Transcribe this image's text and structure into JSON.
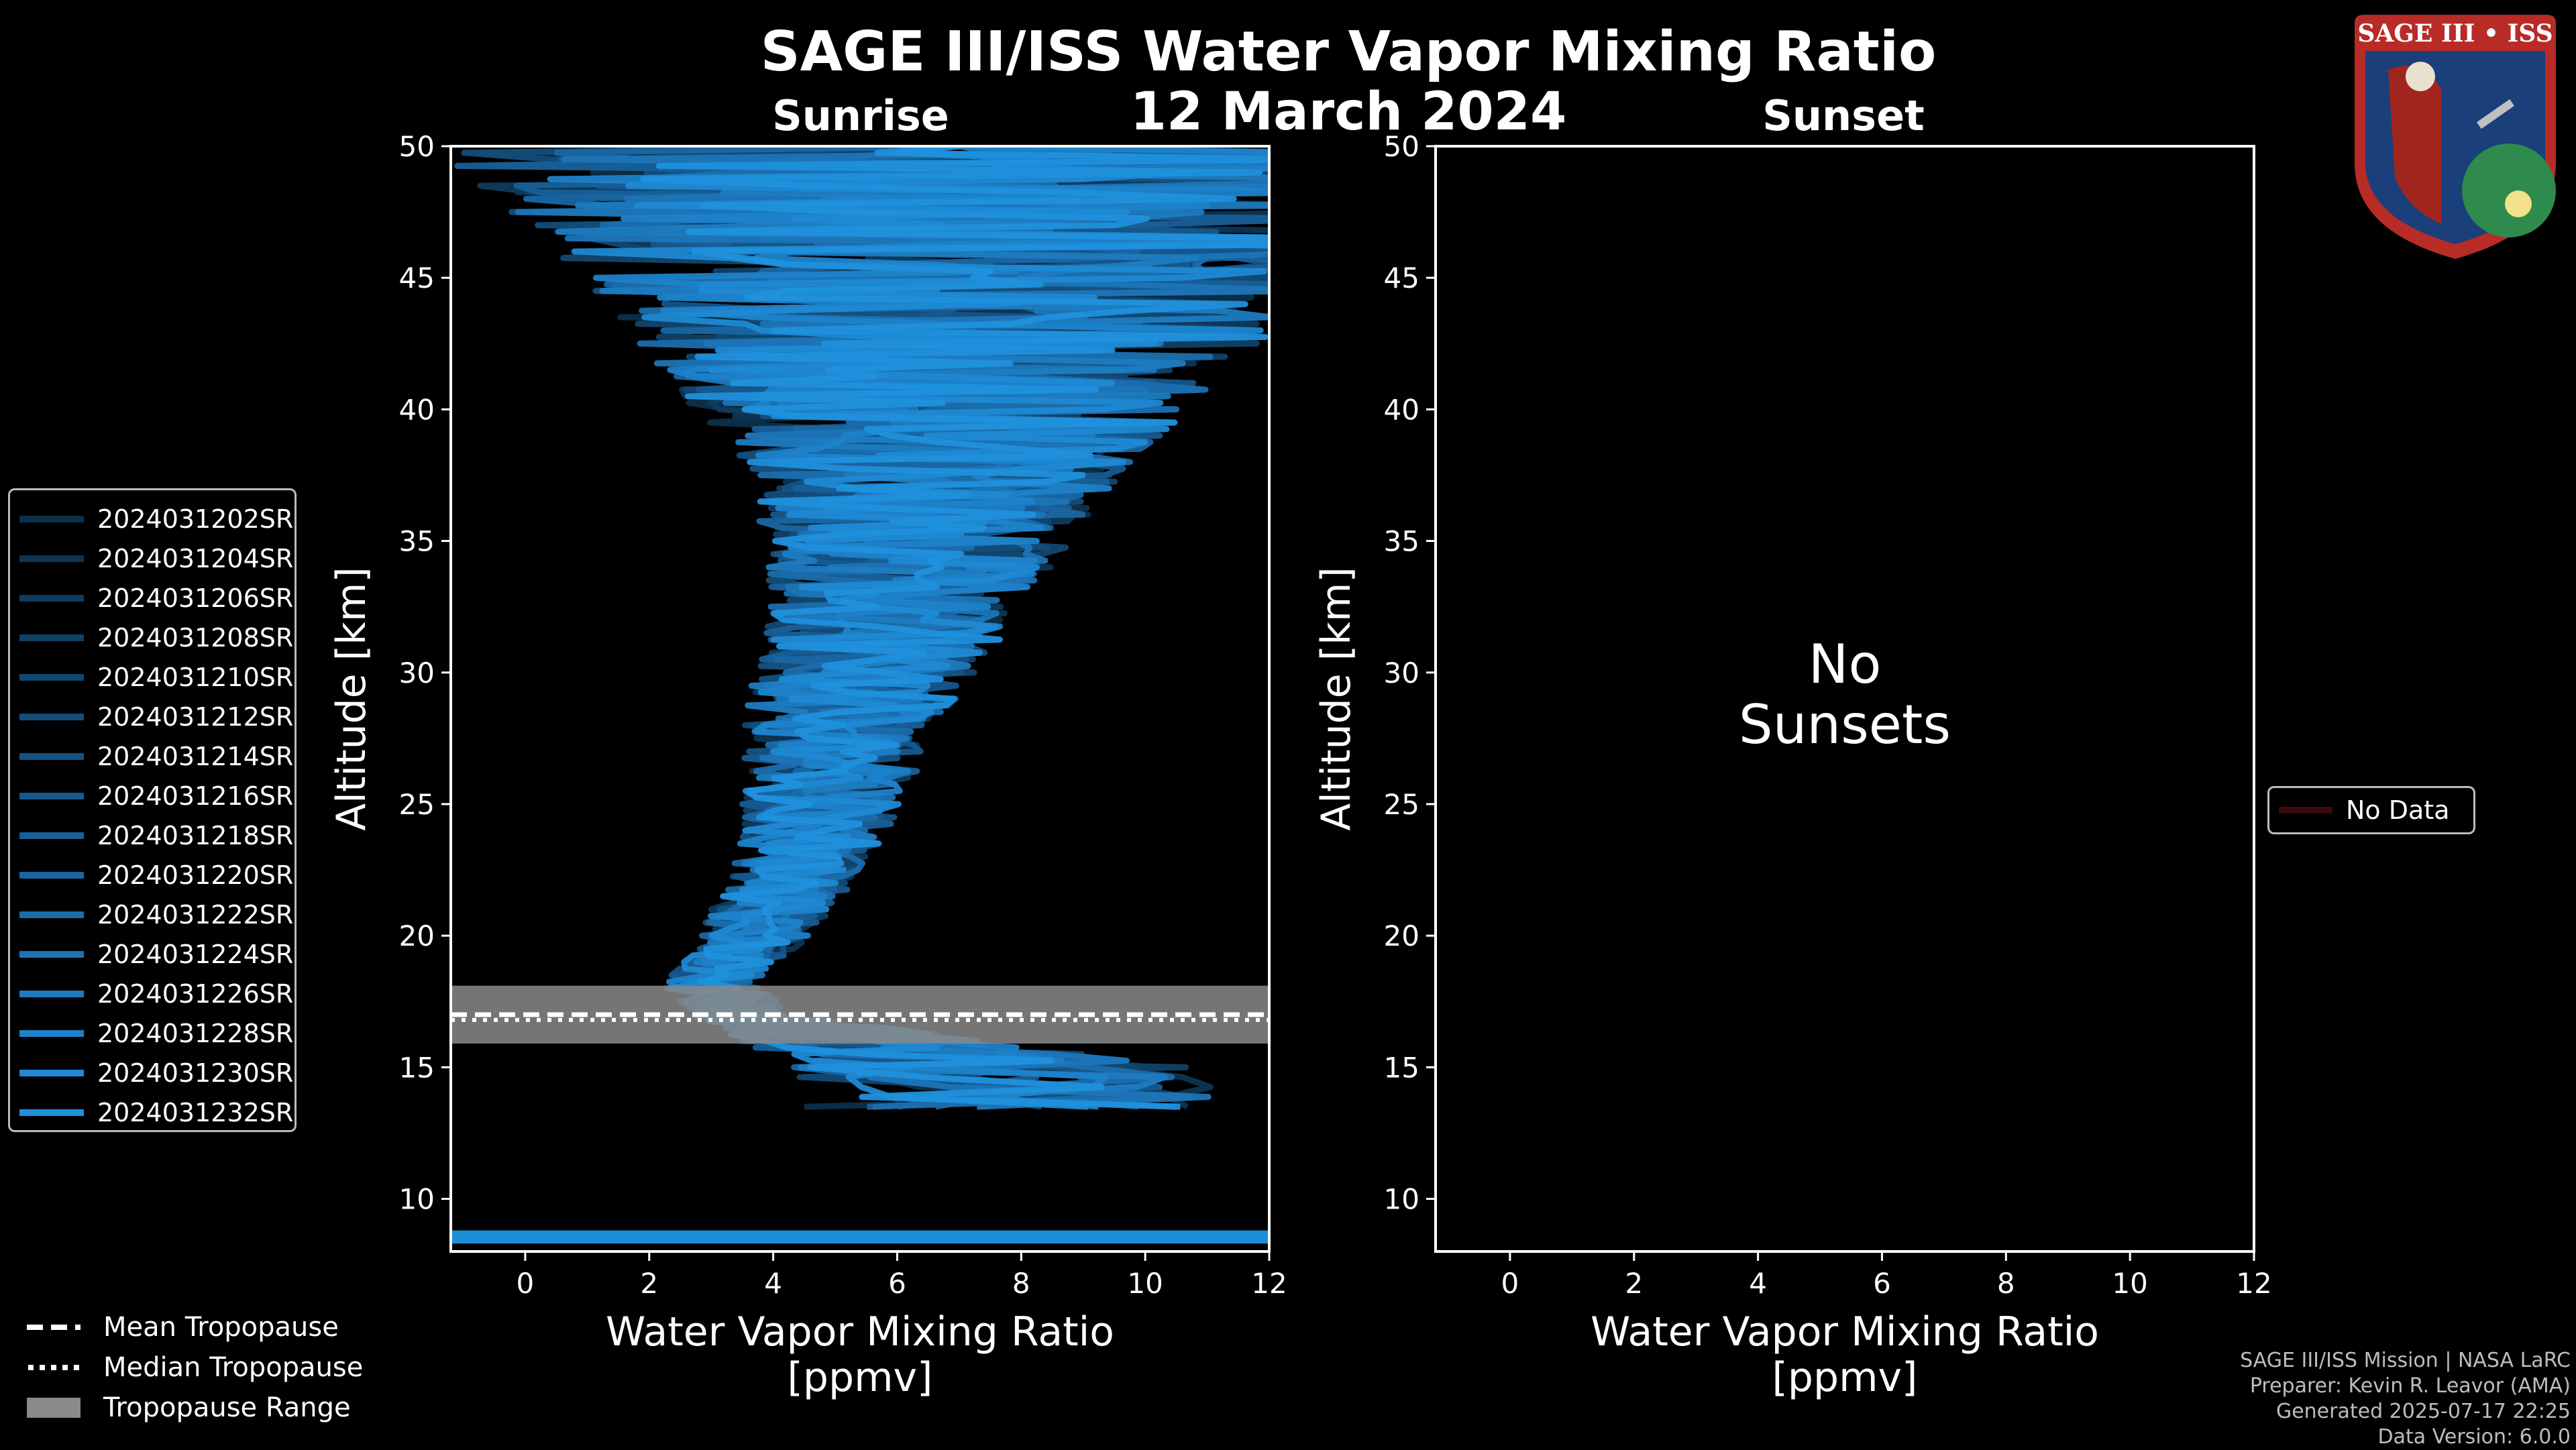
{
  "title": "SAGE III/ISS Water Vapor Mixing Ratio",
  "date": "12 March 2024",
  "logo": {
    "text": "SAGE III • ISS"
  },
  "colors": {
    "background": "#000000",
    "profile": "#1b8fd6",
    "tropopause_band": "#8a8a8a"
  },
  "chart_data": [
    {
      "type": "line",
      "panel": "Sunrise",
      "title": "Sunrise",
      "xlabel": "Water Vapor Mixing Ratio\n[ppmv]",
      "xlabel_lines": [
        "Water Vapor Mixing Ratio",
        "[ppmv]"
      ],
      "ylabel": "Altitude [km]",
      "xlim": [
        -1.2,
        12
      ],
      "ylim": [
        8,
        50
      ],
      "xticks": [
        0,
        2,
        4,
        6,
        8,
        10,
        12
      ],
      "yticks": [
        10,
        15,
        20,
        25,
        30,
        35,
        40,
        45,
        50
      ],
      "series_names": [
        "2024031202SR",
        "2024031204SR",
        "2024031206SR",
        "2024031208SR",
        "2024031210SR",
        "2024031212SR",
        "2024031214SR",
        "2024031216SR",
        "2024031218SR",
        "2024031220SR",
        "2024031222SR",
        "2024031224SR",
        "2024031226SR",
        "2024031228SR",
        "2024031230SR",
        "2024031232SR"
      ],
      "series_colors": [
        "#0c2f4a",
        "#0d3553",
        "#0f3b5d",
        "#104166",
        "#124770",
        "#134d7a",
        "#155384",
        "#16598e",
        "#185f98",
        "#1966a2",
        "#1b6dac",
        "#1c74b6",
        "#1d7bc0",
        "#1e82ca",
        "#1f89d3",
        "#2090dc"
      ],
      "profile_shape": {
        "altitude_km": [
          13.5,
          15,
          16,
          17,
          18,
          19,
          20,
          21,
          22,
          23,
          24,
          25,
          26,
          27,
          28,
          29,
          30,
          31,
          32,
          33,
          34,
          35,
          36,
          37,
          38,
          39,
          40,
          41,
          42,
          43,
          44,
          45,
          46,
          47,
          48,
          49,
          50
        ],
        "mean_ppmv": [
          8.0,
          7.5,
          5.5,
          3.5,
          3.0,
          3.3,
          3.7,
          4.0,
          4.3,
          4.5,
          4.7,
          4.8,
          4.9,
          5.0,
          5.1,
          5.3,
          5.5,
          5.7,
          5.9,
          6.0,
          6.2,
          6.3,
          6.4,
          6.5,
          6.6,
          6.7,
          6.7,
          6.8,
          6.8,
          6.9,
          6.9,
          6.9,
          7.0,
          7.0,
          7.0,
          7.0,
          7.0
        ],
        "spread_ppmv": [
          3.5,
          3.2,
          2.0,
          0.8,
          0.8,
          0.8,
          0.9,
          1.0,
          1.0,
          1.1,
          1.2,
          1.3,
          1.4,
          1.5,
          1.6,
          1.7,
          1.8,
          1.9,
          2.0,
          2.1,
          2.3,
          2.5,
          2.7,
          3.0,
          3.3,
          3.6,
          4.0,
          4.4,
          4.8,
          5.2,
          5.6,
          6.0,
          6.5,
          7.0,
          7.5,
          8.0,
          8.5
        ]
      },
      "low_altitude_band_km": [
        8.3,
        8.8
      ],
      "tropopause": {
        "mean_km": 17.0,
        "median_km": 16.8,
        "range_km": [
          15.9,
          18.1
        ]
      }
    },
    {
      "type": "line",
      "panel": "Sunset",
      "title": "Sunset",
      "xlabel": "Water Vapor Mixing Ratio\n[ppmv]",
      "xlabel_lines": [
        "Water Vapor Mixing Ratio",
        "[ppmv]"
      ],
      "ylabel": "Altitude [km]",
      "xlim": [
        -1.2,
        12
      ],
      "ylim": [
        8,
        50
      ],
      "xticks": [
        0,
        2,
        4,
        6,
        8,
        10,
        12
      ],
      "yticks": [
        10,
        15,
        20,
        25,
        30,
        35,
        40,
        45,
        50
      ],
      "series": [],
      "annotation_lines": [
        "No",
        "Sunsets"
      ],
      "legend": [
        "No Data"
      ]
    }
  ],
  "bottom_legend": {
    "mean": "Mean Tropopause",
    "median": "Median Tropopause",
    "range": "Tropopause Range"
  },
  "credits": [
    "SAGE III/ISS Mission | NASA LaRC",
    "Preparer: Kevin R. Leavor (AMA)",
    "Generated 2025-07-17 22:25",
    "Data Version: 6.0.0"
  ]
}
